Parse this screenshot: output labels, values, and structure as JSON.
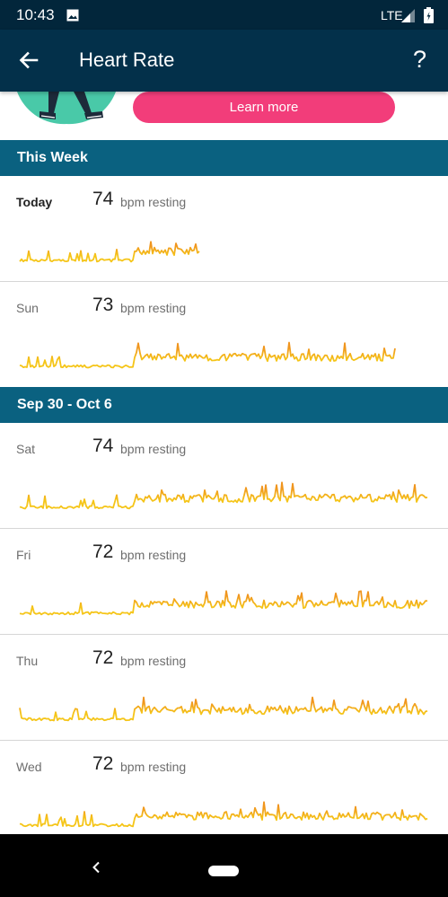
{
  "status_bar": {
    "time": "10:43",
    "network": "LTE"
  },
  "app_bar": {
    "title": "Heart Rate",
    "back_icon": "arrow-left-icon",
    "help_icon": "?"
  },
  "promo": {
    "button_label": "Learn more",
    "accent": "#f23d7a"
  },
  "unit_label": "bpm resting",
  "sections": [
    {
      "header": "This Week"
    },
    {
      "header": "Sep 30 - Oct 6"
    }
  ],
  "days": [
    {
      "label": "Today",
      "bpm": "74",
      "coverage": 0.44
    },
    {
      "label": "Sun",
      "bpm": "73",
      "coverage": 0.92
    },
    {
      "label": "Sat",
      "bpm": "74",
      "coverage": 1.0
    },
    {
      "label": "Fri",
      "bpm": "72",
      "coverage": 1.0
    },
    {
      "label": "Thu",
      "bpm": "72",
      "coverage": 1.0
    },
    {
      "label": "Wed",
      "bpm": "72",
      "coverage": 1.0
    }
  ],
  "colors": {
    "status_bar": "#02263b",
    "app_bar": "#03304a",
    "section_header": "#0a6180",
    "line_low": "#f5c518",
    "line_high": "#f0951e"
  }
}
